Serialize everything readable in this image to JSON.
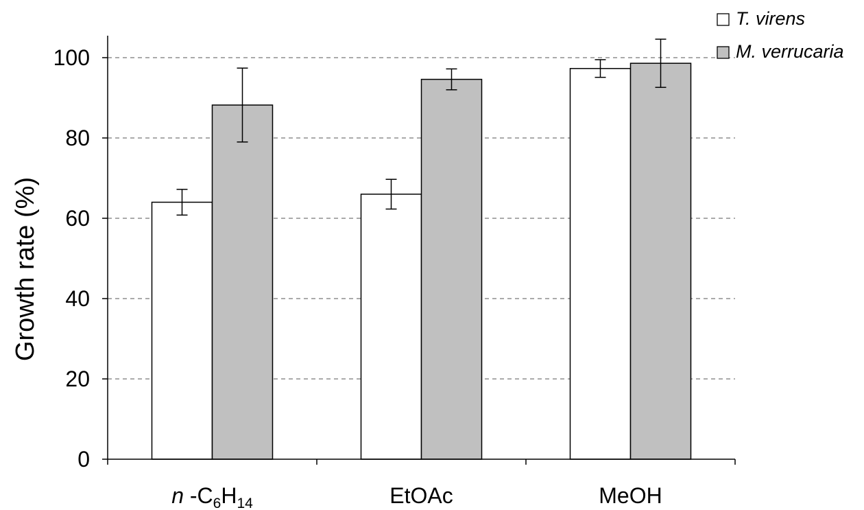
{
  "chart_data": {
    "type": "bar",
    "categories": [
      {
        "prefix": "n",
        "sep": " -C",
        "sub1": "6",
        "mid": "H",
        "sub2": "14"
      },
      {
        "prefix": "",
        "sep": "EtOAc",
        "sub1": "",
        "mid": "",
        "sub2": ""
      },
      {
        "prefix": "",
        "sep": "MeOH",
        "sub1": "",
        "mid": "",
        "sub2": ""
      }
    ],
    "category_names": [
      "n -C6H14",
      "EtOAc",
      "MeOH"
    ],
    "series": [
      {
        "name": "T. virens",
        "color": "#ffffff",
        "values": [
          64,
          66,
          97.3
        ],
        "errors": [
          3.2,
          3.7,
          2.2
        ]
      },
      {
        "name": "M. verrucaria",
        "color": "#c0c0c0",
        "values": [
          88.2,
          94.6,
          98.6
        ],
        "errors": [
          9.2,
          2.6,
          6.0
        ]
      }
    ],
    "title": "",
    "xlabel": "",
    "ylabel": "Growth rate (%)",
    "ylim": [
      0,
      105
    ],
    "yticks": [
      0,
      20,
      40,
      60,
      80,
      100
    ],
    "grid": "horizontal dashed",
    "legend_position": "top-right"
  }
}
